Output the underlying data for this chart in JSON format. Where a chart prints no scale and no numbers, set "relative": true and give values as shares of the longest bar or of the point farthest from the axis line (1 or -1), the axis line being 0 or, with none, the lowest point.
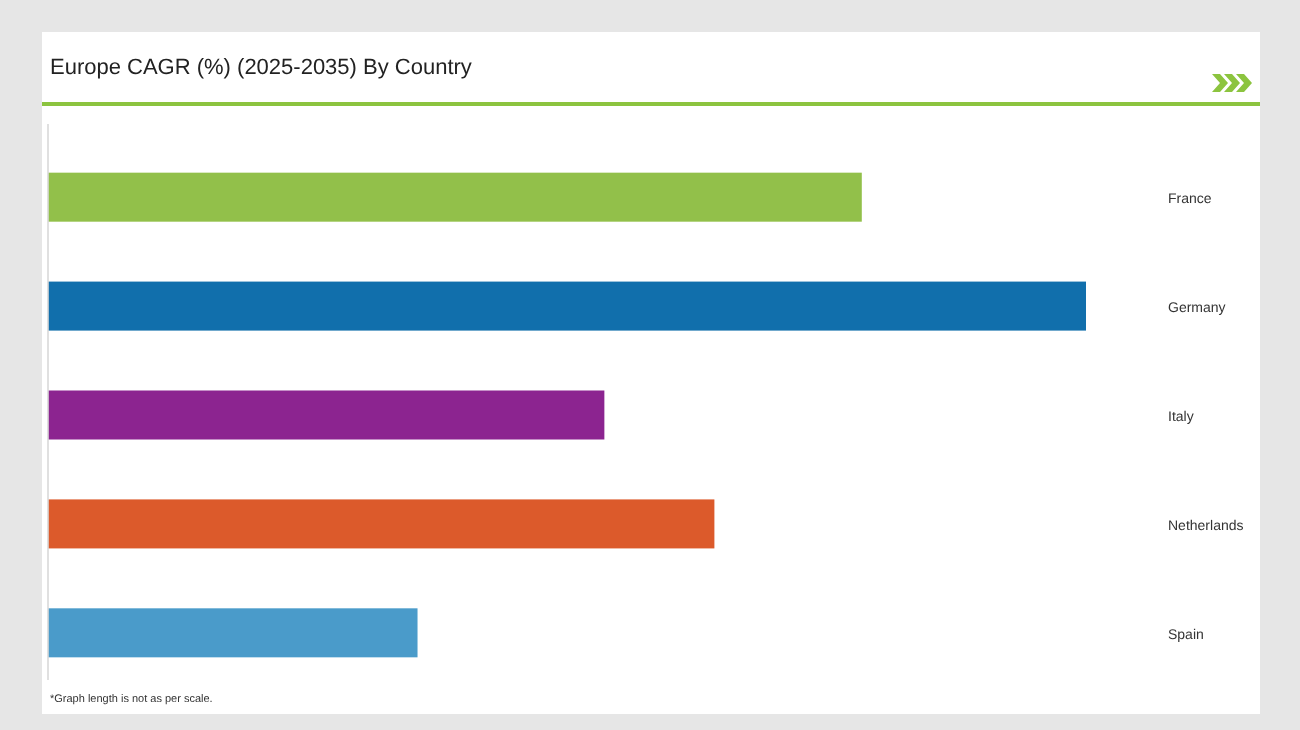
{
  "chart_data": {
    "type": "bar",
    "orientation": "horizontal",
    "relative": true,
    "title": "Europe CAGR (%) (2025-2035) By Country",
    "categories": [
      "France",
      "Germany",
      "Italy",
      "Netherlands",
      "Spain"
    ],
    "values": [
      0.784,
      1,
      0.536,
      0.642,
      0.356
    ],
    "colors": [
      "#92c04a",
      "#116fac",
      "#8c2490",
      "#dc5a2b",
      "#4a9bca"
    ],
    "annotations": [
      "*Graph length is not as per scale."
    ]
  }
}
